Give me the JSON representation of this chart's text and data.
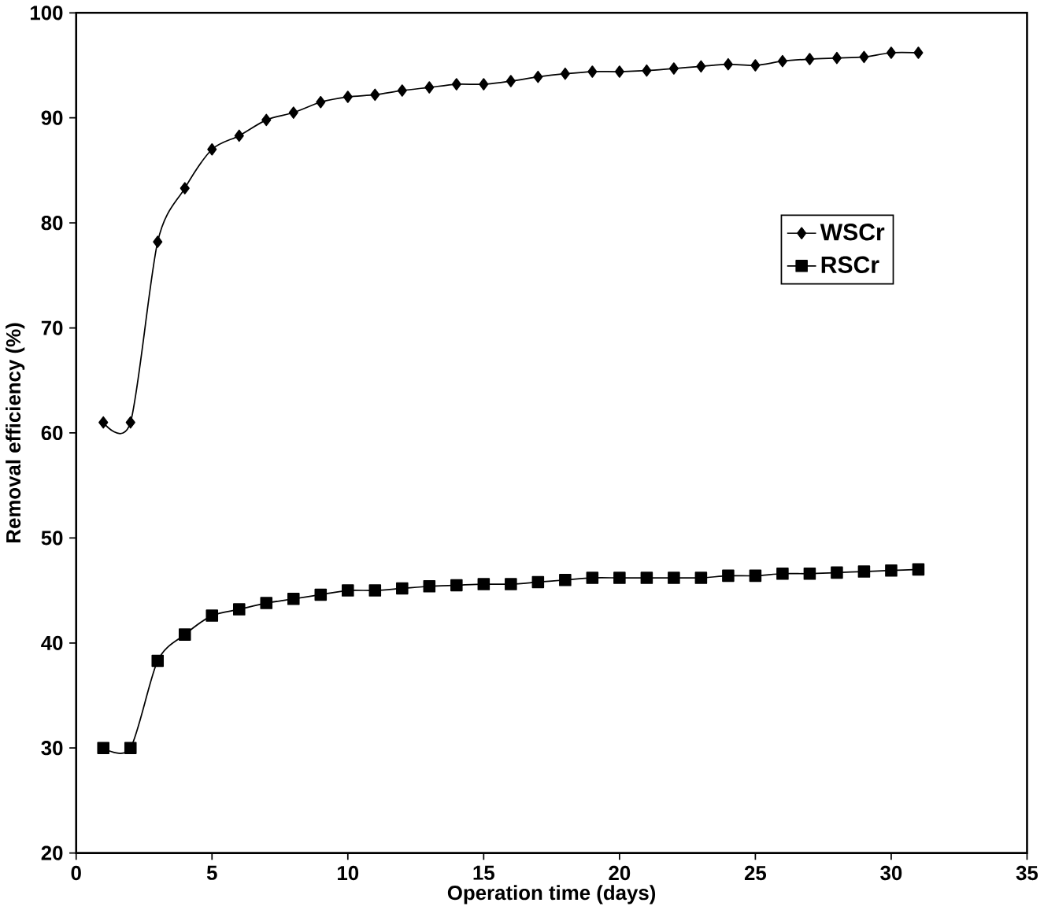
{
  "chart_data": {
    "type": "line",
    "xlabel": "Operation time (days)",
    "ylabel": "Removal efficiency (%)",
    "x": [
      1,
      2,
      3,
      4,
      5,
      6,
      7,
      8,
      9,
      10,
      11,
      12,
      13,
      14,
      15,
      16,
      17,
      18,
      19,
      20,
      21,
      22,
      23,
      24,
      25,
      26,
      27,
      28,
      29,
      30,
      31
    ],
    "series": [
      {
        "name": "WSCr",
        "color": "#000000",
        "marker": "diamond",
        "values": [
          61,
          61,
          78.2,
          83.3,
          87,
          88.3,
          89.8,
          90.5,
          91.5,
          92,
          92.2,
          92.6,
          92.9,
          93.2,
          93.2,
          93.5,
          93.9,
          94.2,
          94.4,
          94.4,
          94.5,
          94.7,
          94.9,
          95.1,
          95.0,
          95.4,
          95.6,
          95.7,
          95.8,
          96.2,
          96.2
        ]
      },
      {
        "name": "RSCr",
        "color": "#000000",
        "marker": "square",
        "values": [
          30,
          30,
          38.3,
          40.8,
          42.6,
          43.2,
          43.8,
          44.2,
          44.6,
          45,
          45,
          45.2,
          45.4,
          45.5,
          45.6,
          45.6,
          45.8,
          46,
          46.2,
          46.2,
          46.2,
          46.2,
          46.2,
          46.4,
          46.4,
          46.6,
          46.6,
          46.7,
          46.8,
          46.9,
          47.0
        ]
      }
    ],
    "xlim": [
      0,
      35
    ],
    "xticks": [
      0,
      5,
      10,
      15,
      20,
      25,
      30,
      35
    ],
    "ylim": [
      20,
      100
    ],
    "yticks": [
      20,
      30,
      40,
      50,
      60,
      70,
      80,
      90,
      100
    ],
    "legend": "right",
    "grid": false,
    "line_style": "solid"
  }
}
